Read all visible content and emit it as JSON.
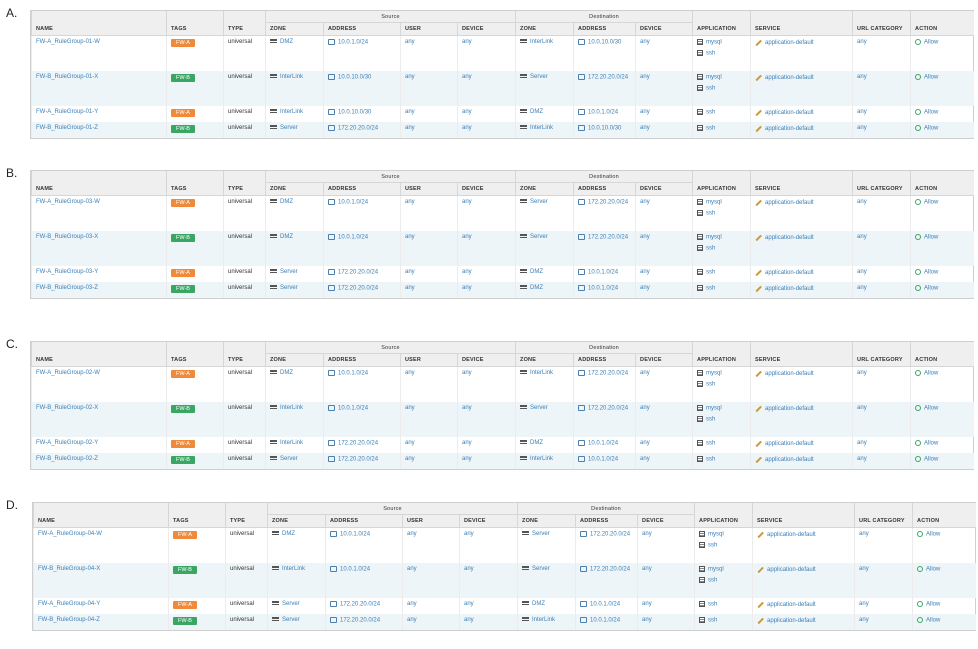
{
  "headers": {
    "name": "NAME",
    "tags": "TAGS",
    "type": "TYPE",
    "source": "Source",
    "destination": "Destination",
    "zone": "ZONE",
    "address": "ADDRESS",
    "user": "USER",
    "device": "DEVICE",
    "application": "APPLICATION",
    "service": "SERVICE",
    "url_category": "URL CATEGORY",
    "action": "ACTION"
  },
  "options": [
    {
      "label": "A.",
      "rows": [
        {
          "name": "FW-A_RuleGroup-01-W",
          "tag": "FW-A",
          "type": "universal",
          "src_zone": "DMZ",
          "src_addr": "10.0.1.0/24",
          "user": "any",
          "device": "any",
          "dst_zone": "InterLink",
          "dst_addr": "10.0.10.0/30",
          "dst_device": "any",
          "apps": [
            "mysql",
            "ssh"
          ],
          "service": "application-default",
          "url": "any",
          "action": "Allow"
        },
        {
          "name": "FW-B_RuleGroup-01-X",
          "tag": "FW-B",
          "type": "universal",
          "src_zone": "InterLink",
          "src_addr": "10.0.10.0/30",
          "user": "any",
          "device": "any",
          "dst_zone": "Server",
          "dst_addr": "172.20.20.0/24",
          "dst_device": "any",
          "apps": [
            "mysql",
            "ssh"
          ],
          "service": "application-default",
          "url": "any",
          "action": "Allow"
        },
        {
          "name": "FW-A_RuleGroup-01-Y",
          "tag": "FW-A",
          "type": "universal",
          "src_zone": "InterLink",
          "src_addr": "10.0.10.0/30",
          "user": "any",
          "device": "any",
          "dst_zone": "DMZ",
          "dst_addr": "10.0.1.0/24",
          "dst_device": "any",
          "apps": [
            "ssh"
          ],
          "service": "application-default",
          "url": "any",
          "action": "Allow"
        },
        {
          "name": "FW-B_RuleGroup-01-Z",
          "tag": "FW-B",
          "type": "universal",
          "src_zone": "Server",
          "src_addr": "172.20.20.0/24",
          "user": "any",
          "device": "any",
          "dst_zone": "InterLink",
          "dst_addr": "10.0.10.0/30",
          "dst_device": "any",
          "apps": [
            "ssh"
          ],
          "service": "application-default",
          "url": "any",
          "action": "Allow"
        }
      ]
    },
    {
      "label": "B.",
      "rows": [
        {
          "name": "FW-A_RuleGroup-03-W",
          "tag": "FW-A",
          "type": "universal",
          "src_zone": "DMZ",
          "src_addr": "10.0.1.0/24",
          "user": "any",
          "device": "any",
          "dst_zone": "Server",
          "dst_addr": "172.20.20.0/24",
          "dst_device": "any",
          "apps": [
            "mysql",
            "ssh"
          ],
          "service": "application-default",
          "url": "any",
          "action": "Allow"
        },
        {
          "name": "FW-B_RuleGroup-03-X",
          "tag": "FW-B",
          "type": "universal",
          "src_zone": "DMZ",
          "src_addr": "10.0.1.0/24",
          "user": "any",
          "device": "any",
          "dst_zone": "Server",
          "dst_addr": "172.20.20.0/24",
          "dst_device": "any",
          "apps": [
            "mysql",
            "ssh"
          ],
          "service": "application-default",
          "url": "any",
          "action": "Allow"
        },
        {
          "name": "FW-A_RuleGroup-03-Y",
          "tag": "FW-A",
          "type": "universal",
          "src_zone": "Server",
          "src_addr": "172.20.20.0/24",
          "user": "any",
          "device": "any",
          "dst_zone": "DMZ",
          "dst_addr": "10.0.1.0/24",
          "dst_device": "any",
          "apps": [
            "ssh"
          ],
          "service": "application-default",
          "url": "any",
          "action": "Allow"
        },
        {
          "name": "FW-B_RuleGroup-03-Z",
          "tag": "FW-B",
          "type": "universal",
          "src_zone": "Server",
          "src_addr": "172.20.20.0/24",
          "user": "any",
          "device": "any",
          "dst_zone": "DMZ",
          "dst_addr": "10.0.1.0/24",
          "dst_device": "any",
          "apps": [
            "ssh"
          ],
          "service": "application-default",
          "url": "any",
          "action": "Allow"
        }
      ]
    },
    {
      "label": "C.",
      "rows": [
        {
          "name": "FW-A_RuleGroup-02-W",
          "tag": "FW-A",
          "type": "universal",
          "src_zone": "DMZ",
          "src_addr": "10.0.1.0/24",
          "user": "any",
          "device": "any",
          "dst_zone": "InterLink",
          "dst_addr": "172.20.20.0/24",
          "dst_device": "any",
          "apps": [
            "mysql",
            "ssh"
          ],
          "service": "application-default",
          "url": "any",
          "action": "Allow"
        },
        {
          "name": "FW-B_RuleGroup-02-X",
          "tag": "FW-B",
          "type": "universal",
          "src_zone": "InterLink",
          "src_addr": "10.0.1.0/24",
          "user": "any",
          "device": "any",
          "dst_zone": "Server",
          "dst_addr": "172.20.20.0/24",
          "dst_device": "any",
          "apps": [
            "mysql",
            "ssh"
          ],
          "service": "application-default",
          "url": "any",
          "action": "Allow"
        },
        {
          "name": "FW-A_RuleGroup-02-Y",
          "tag": "FW-A",
          "type": "universal",
          "src_zone": "InterLink",
          "src_addr": "172.20.20.0/24",
          "user": "any",
          "device": "any",
          "dst_zone": "DMZ",
          "dst_addr": "10.0.1.0/24",
          "dst_device": "any",
          "apps": [
            "ssh"
          ],
          "service": "application-default",
          "url": "any",
          "action": "Allow"
        },
        {
          "name": "FW-B_RuleGroup-02-Z",
          "tag": "FW-B",
          "type": "universal",
          "src_zone": "Server",
          "src_addr": "172.20.20.0/24",
          "user": "any",
          "device": "any",
          "dst_zone": "InterLink",
          "dst_addr": "10.0.1.0/24",
          "dst_device": "any",
          "apps": [
            "ssh"
          ],
          "service": "application-default",
          "url": "any",
          "action": "Allow"
        }
      ]
    },
    {
      "label": "D.",
      "rows": [
        {
          "name": "FW-A_RuleGroup-04-W",
          "tag": "FW-A",
          "type": "universal",
          "src_zone": "DMZ",
          "src_addr": "10.0.1.0/24",
          "user": "any",
          "device": "any",
          "dst_zone": "Server",
          "dst_addr": "172.20.20.0/24",
          "dst_device": "any",
          "apps": [
            "mysql",
            "ssh"
          ],
          "service": "application-default",
          "url": "any",
          "action": "Allow"
        },
        {
          "name": "FW-B_RuleGroup-04-X",
          "tag": "FW-B",
          "type": "universal",
          "src_zone": "InterLink",
          "src_addr": "10.0.1.0/24",
          "user": "any",
          "device": "any",
          "dst_zone": "Server",
          "dst_addr": "172.20.20.0/24",
          "dst_device": "any",
          "apps": [
            "mysql",
            "ssh"
          ],
          "service": "application-default",
          "url": "any",
          "action": "Allow"
        },
        {
          "name": "FW-A_RuleGroup-04-Y",
          "tag": "FW-A",
          "type": "universal",
          "src_zone": "Server",
          "src_addr": "172.20.20.0/24",
          "user": "any",
          "device": "any",
          "dst_zone": "DMZ",
          "dst_addr": "10.0.1.0/24",
          "dst_device": "any",
          "apps": [
            "ssh"
          ],
          "service": "application-default",
          "url": "any",
          "action": "Allow"
        },
        {
          "name": "FW-B_RuleGroup-04-Z",
          "tag": "FW-B",
          "type": "universal",
          "src_zone": "Server",
          "src_addr": "172.20.20.0/24",
          "user": "any",
          "device": "any",
          "dst_zone": "InterLink",
          "dst_addr": "10.0.1.0/24",
          "dst_device": "any",
          "apps": [
            "ssh"
          ],
          "service": "application-default",
          "url": "any",
          "action": "Allow"
        }
      ]
    }
  ]
}
